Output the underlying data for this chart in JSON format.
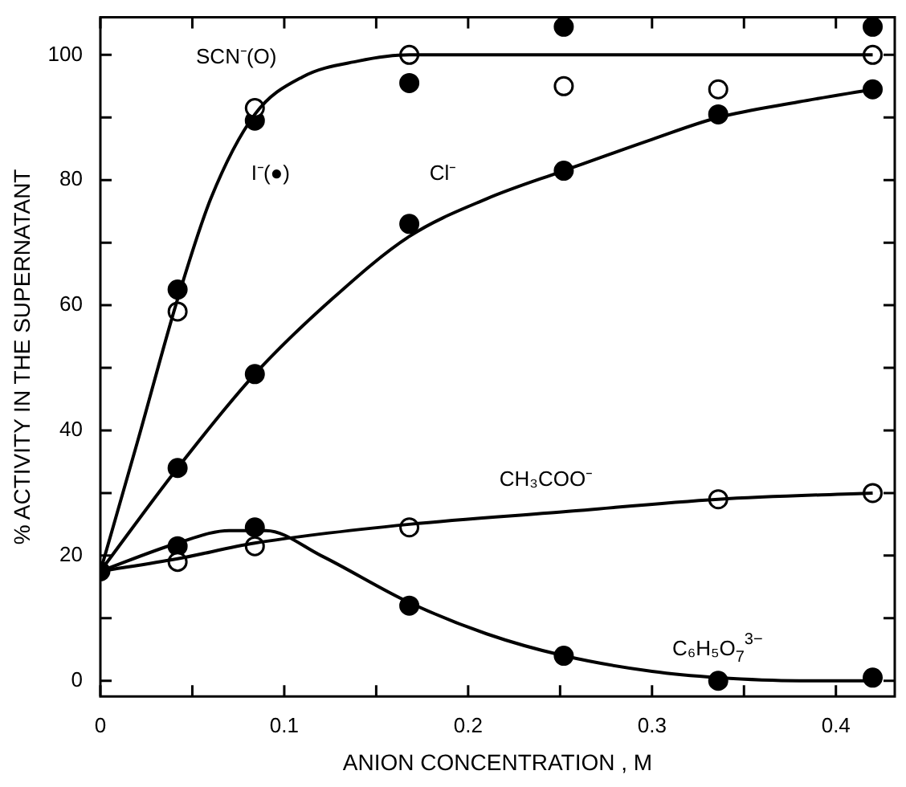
{
  "chart_data": {
    "type": "scatter",
    "xlabel": "ANION CONCENTRATION , M",
    "ylabel": "% ACTIVITY IN THE SUPERNATANT",
    "xlim": [
      0,
      0.432
    ],
    "ylim": [
      -2.5,
      106
    ],
    "xticks": [
      0,
      {
        "value": 0.05,
        "label": null
      },
      0.1,
      {
        "value": 0.15,
        "label": null
      },
      0.2,
      {
        "value": 0.25,
        "label": null
      },
      0.3,
      {
        "value": 0.35,
        "label": null
      },
      0.4
    ],
    "yticks": [
      0,
      {
        "value": 10,
        "label": null
      },
      20,
      {
        "value": 30,
        "label": null
      },
      40,
      {
        "value": 50,
        "label": null
      },
      60,
      {
        "value": 70,
        "label": null
      },
      80,
      {
        "value": 90,
        "label": null
      },
      100
    ],
    "grid": false,
    "legend": false,
    "marker": "circle",
    "series": [
      {
        "type": "line",
        "marker": "none",
        "color": "#000000",
        "x": [
          0,
          0.02,
          0.042,
          0.06,
          0.084,
          0.11,
          0.14,
          0.168,
          0.25,
          0.42
        ],
        "values": [
          17.5,
          38,
          61,
          77,
          90.5,
          96.5,
          99,
          100,
          100,
          100
        ]
      },
      {
        "type": "line",
        "marker": "none",
        "color": "#000000",
        "x": [
          0,
          0.042,
          0.084,
          0.126,
          0.168,
          0.21,
          0.252,
          0.3,
          0.336,
          0.38,
          0.42
        ],
        "values": [
          17.5,
          34,
          49,
          61,
          71,
          77,
          81.5,
          86.5,
          90,
          92.5,
          94.5
        ]
      },
      {
        "type": "line",
        "marker": "none",
        "color": "#000000",
        "x": [
          0,
          0.042,
          0.084,
          0.168,
          0.252,
          0.336,
          0.42
        ],
        "values": [
          17.5,
          19.5,
          22,
          25,
          27,
          29,
          30
        ]
      },
      {
        "type": "line",
        "marker": "none",
        "color": "#000000",
        "x": [
          0,
          0.042,
          0.07,
          0.09,
          0.12,
          0.168,
          0.21,
          0.252,
          0.3,
          0.336,
          0.38,
          0.42
        ],
        "values": [
          17.5,
          22,
          24,
          24,
          20,
          12.5,
          7.5,
          4,
          1.5,
          0.5,
          0,
          0
        ]
      },
      {
        "color": "#ffffff",
        "x": [
          0.042,
          0.084,
          0.168,
          0.252,
          0.336,
          0.42
        ],
        "values": [
          59,
          91.5,
          100,
          95,
          94.5,
          100
        ]
      },
      {
        "color": "#000000",
        "x": [
          0,
          0.042,
          0.084,
          0.168,
          0.252,
          0.42
        ],
        "values": [
          17.5,
          62.5,
          89.5,
          95.5,
          104.5,
          104.5
        ]
      },
      {
        "color": "#000000",
        "x": [
          0.042,
          0.084,
          0.168,
          0.252,
          0.336,
          0.42
        ],
        "values": [
          34,
          49,
          73,
          81.5,
          90.5,
          94.5
        ]
      },
      {
        "color": "#ffffff",
        "x": [
          0.042,
          0.084,
          0.168,
          0.336,
          0.42
        ],
        "values": [
          19,
          21.5,
          24.5,
          29,
          30
        ]
      },
      {
        "color": "#000000",
        "x": [
          0.042,
          0.084,
          0.168,
          0.252,
          0.336,
          0.42
        ],
        "values": [
          21.5,
          24.5,
          12,
          4,
          0,
          0.5
        ]
      }
    ],
    "annotations": [
      "SCN⁻(O)",
      "I⁻(●)",
      "Cl⁻",
      "CH₃COO⁻",
      "C₆H₅O$_{7}$$^{3−}$"
    ]
  }
}
